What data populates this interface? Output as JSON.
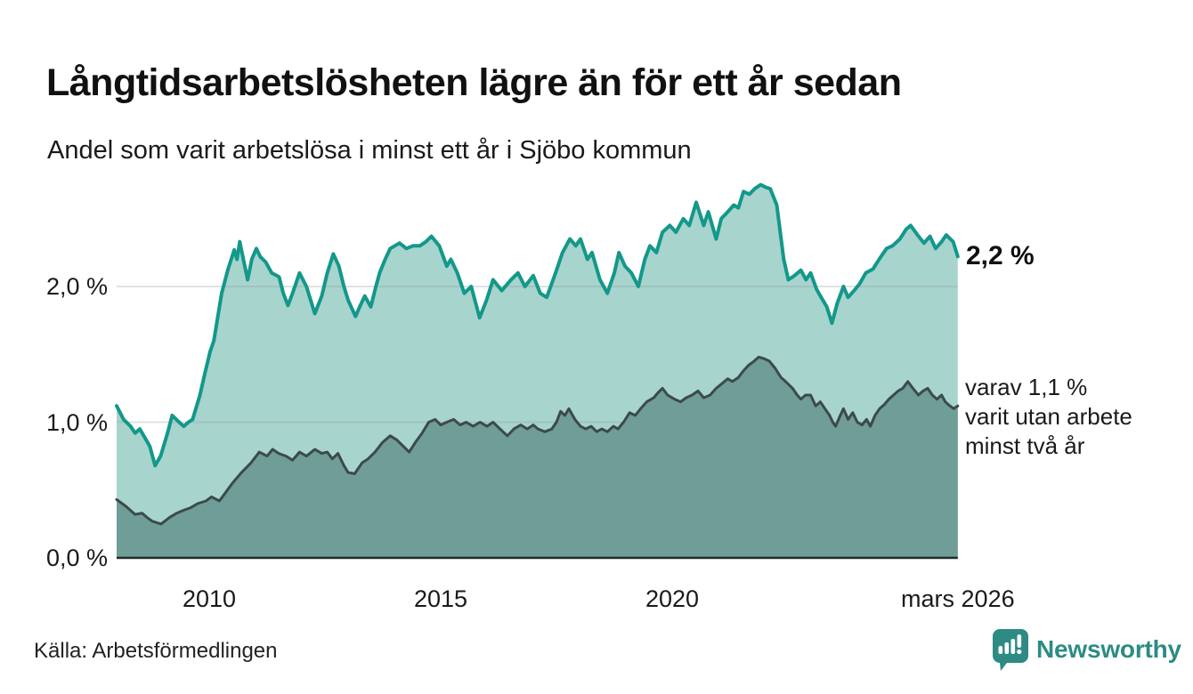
{
  "header": {
    "title": "Långtidsarbetslösheten lägre än för ett år sedan",
    "subtitle": "Andel som varit arbetslösa i minst ett år i Sjöbo kommun"
  },
  "footer": {
    "source": "Källa: Arbetsförmedlingen",
    "brand": "Newsworthy",
    "brand_color": "#2e8b84"
  },
  "chart_data": {
    "type": "area",
    "title": "Långtidsarbetslösheten lägre än för ett år sedan",
    "subtitle": "Andel som varit arbetslösa i minst ett år i Sjöbo kommun",
    "unit": "%",
    "legend": "none",
    "grid": "horizontal",
    "grid_color": "rgba(140,150,150,0.28)",
    "axis_line_color": "#1e2c2a",
    "x_axis": {
      "range_t": [
        2008.0,
        2026.17
      ],
      "ticks": [
        {
          "label": "2010",
          "t": 2010
        },
        {
          "label": "2015",
          "t": 2015
        },
        {
          "label": "2020",
          "t": 2020
        },
        {
          "label": "mars 2026",
          "t": 2026.17
        }
      ]
    },
    "y_axis": {
      "range": [
        0,
        2.8
      ],
      "gridlines": [
        1,
        2
      ],
      "ticks": [
        {
          "label": "0,0 %",
          "value": 0
        },
        {
          "label": "1,0 %",
          "value": 1
        },
        {
          "label": "2,0 %",
          "value": 2
        }
      ]
    },
    "annotations": {
      "latest_value_label": "2,2 %",
      "secondary_label": "varav 1,1 %\nvarit utan arbete\nminst två år"
    },
    "series": [
      {
        "id": "total",
        "name": "Arbetslösa minst ett år",
        "latest_value": 2.2,
        "line_color": "#13988a",
        "fill_color": "#a8d4ce",
        "line_width": 4,
        "points": [
          [
            2008.0,
            1.12
          ],
          [
            2008.15,
            1.02
          ],
          [
            2008.3,
            0.97
          ],
          [
            2008.4,
            0.92
          ],
          [
            2008.5,
            0.95
          ],
          [
            2008.62,
            0.88
          ],
          [
            2008.72,
            0.82
          ],
          [
            2008.83,
            0.68
          ],
          [
            2008.95,
            0.75
          ],
          [
            2009.1,
            0.92
          ],
          [
            2009.2,
            1.05
          ],
          [
            2009.35,
            1.0
          ],
          [
            2009.45,
            0.97
          ],
          [
            2009.55,
            1.0
          ],
          [
            2009.64,
            1.02
          ],
          [
            2009.8,
            1.2
          ],
          [
            2009.9,
            1.35
          ],
          [
            2010.02,
            1.52
          ],
          [
            2010.1,
            1.6
          ],
          [
            2010.27,
            1.95
          ],
          [
            2010.4,
            2.12
          ],
          [
            2010.54,
            2.27
          ],
          [
            2010.6,
            2.2
          ],
          [
            2010.66,
            2.33
          ],
          [
            2010.75,
            2.18
          ],
          [
            2010.83,
            2.05
          ],
          [
            2010.92,
            2.2
          ],
          [
            2011.02,
            2.28
          ],
          [
            2011.1,
            2.22
          ],
          [
            2011.22,
            2.18
          ],
          [
            2011.35,
            2.1
          ],
          [
            2011.51,
            2.07
          ],
          [
            2011.6,
            1.95
          ],
          [
            2011.7,
            1.86
          ],
          [
            2011.8,
            1.95
          ],
          [
            2011.95,
            2.1
          ],
          [
            2012.1,
            2.0
          ],
          [
            2012.28,
            1.8
          ],
          [
            2012.43,
            1.93
          ],
          [
            2012.55,
            2.1
          ],
          [
            2012.68,
            2.24
          ],
          [
            2012.8,
            2.15
          ],
          [
            2012.91,
            2.0
          ],
          [
            2013.0,
            1.9
          ],
          [
            2013.16,
            1.78
          ],
          [
            2013.25,
            1.85
          ],
          [
            2013.36,
            1.93
          ],
          [
            2013.49,
            1.85
          ],
          [
            2013.6,
            2.0
          ],
          [
            2013.68,
            2.1
          ],
          [
            2013.8,
            2.2
          ],
          [
            2013.91,
            2.28
          ],
          [
            2014.11,
            2.32
          ],
          [
            2014.26,
            2.28
          ],
          [
            2014.4,
            2.3
          ],
          [
            2014.55,
            2.3
          ],
          [
            2014.68,
            2.33
          ],
          [
            2014.8,
            2.37
          ],
          [
            2014.97,
            2.3
          ],
          [
            2015.13,
            2.15
          ],
          [
            2015.22,
            2.2
          ],
          [
            2015.36,
            2.1
          ],
          [
            2015.51,
            1.95
          ],
          [
            2015.66,
            2.0
          ],
          [
            2015.84,
            1.77
          ],
          [
            2015.99,
            1.9
          ],
          [
            2016.13,
            2.05
          ],
          [
            2016.32,
            1.97
          ],
          [
            2016.52,
            2.05
          ],
          [
            2016.67,
            2.1
          ],
          [
            2016.82,
            2.0
          ],
          [
            2017.0,
            2.08
          ],
          [
            2017.15,
            1.95
          ],
          [
            2017.29,
            1.92
          ],
          [
            2017.48,
            2.1
          ],
          [
            2017.63,
            2.25
          ],
          [
            2017.79,
            2.35
          ],
          [
            2017.92,
            2.3
          ],
          [
            2018.02,
            2.35
          ],
          [
            2018.17,
            2.2
          ],
          [
            2018.27,
            2.25
          ],
          [
            2018.44,
            2.05
          ],
          [
            2018.6,
            1.95
          ],
          [
            2018.75,
            2.1
          ],
          [
            2018.85,
            2.25
          ],
          [
            2018.98,
            2.15
          ],
          [
            2019.12,
            2.1
          ],
          [
            2019.27,
            2.0
          ],
          [
            2019.41,
            2.2
          ],
          [
            2019.52,
            2.3
          ],
          [
            2019.66,
            2.25
          ],
          [
            2019.79,
            2.4
          ],
          [
            2019.95,
            2.45
          ],
          [
            2020.08,
            2.4
          ],
          [
            2020.24,
            2.5
          ],
          [
            2020.37,
            2.45
          ],
          [
            2020.52,
            2.62
          ],
          [
            2020.68,
            2.45
          ],
          [
            2020.78,
            2.55
          ],
          [
            2020.95,
            2.35
          ],
          [
            2021.06,
            2.5
          ],
          [
            2021.2,
            2.55
          ],
          [
            2021.33,
            2.6
          ],
          [
            2021.43,
            2.58
          ],
          [
            2021.54,
            2.7
          ],
          [
            2021.67,
            2.68
          ],
          [
            2021.78,
            2.72
          ],
          [
            2021.91,
            2.75
          ],
          [
            2022.03,
            2.73
          ],
          [
            2022.12,
            2.72
          ],
          [
            2022.26,
            2.6
          ],
          [
            2022.41,
            2.2
          ],
          [
            2022.51,
            2.05
          ],
          [
            2022.64,
            2.08
          ],
          [
            2022.78,
            2.12
          ],
          [
            2022.89,
            2.05
          ],
          [
            2022.99,
            2.1
          ],
          [
            2023.12,
            1.98
          ],
          [
            2023.22,
            1.92
          ],
          [
            2023.34,
            1.85
          ],
          [
            2023.45,
            1.73
          ],
          [
            2023.57,
            1.88
          ],
          [
            2023.7,
            2.0
          ],
          [
            2023.8,
            1.92
          ],
          [
            2023.93,
            1.97
          ],
          [
            2024.05,
            2.02
          ],
          [
            2024.18,
            2.1
          ],
          [
            2024.34,
            2.13
          ],
          [
            2024.47,
            2.2
          ],
          [
            2024.63,
            2.28
          ],
          [
            2024.76,
            2.3
          ],
          [
            2024.92,
            2.35
          ],
          [
            2025.05,
            2.42
          ],
          [
            2025.15,
            2.45
          ],
          [
            2025.3,
            2.38
          ],
          [
            2025.44,
            2.32
          ],
          [
            2025.57,
            2.37
          ],
          [
            2025.69,
            2.28
          ],
          [
            2025.82,
            2.33
          ],
          [
            2025.92,
            2.38
          ],
          [
            2026.07,
            2.33
          ],
          [
            2026.17,
            2.22
          ]
        ]
      },
      {
        "id": "two_years",
        "name": "Arbetslösa minst två år",
        "latest_value": 1.1,
        "line_color": "#3c4a4a",
        "fill_color": "#6f9d97",
        "line_width": 3,
        "points": [
          [
            2008.0,
            0.43
          ],
          [
            2008.2,
            0.38
          ],
          [
            2008.4,
            0.32
          ],
          [
            2008.55,
            0.33
          ],
          [
            2008.65,
            0.3
          ],
          [
            2008.77,
            0.27
          ],
          [
            2008.96,
            0.25
          ],
          [
            2009.15,
            0.3
          ],
          [
            2009.3,
            0.33
          ],
          [
            2009.44,
            0.35
          ],
          [
            2009.6,
            0.37
          ],
          [
            2009.75,
            0.4
          ],
          [
            2009.93,
            0.42
          ],
          [
            2010.05,
            0.45
          ],
          [
            2010.22,
            0.42
          ],
          [
            2010.35,
            0.48
          ],
          [
            2010.5,
            0.55
          ],
          [
            2010.7,
            0.63
          ],
          [
            2010.9,
            0.7
          ],
          [
            2011.08,
            0.78
          ],
          [
            2011.25,
            0.75
          ],
          [
            2011.37,
            0.8
          ],
          [
            2011.5,
            0.77
          ],
          [
            2011.66,
            0.75
          ],
          [
            2011.8,
            0.72
          ],
          [
            2011.95,
            0.78
          ],
          [
            2012.1,
            0.75
          ],
          [
            2012.28,
            0.8
          ],
          [
            2012.43,
            0.77
          ],
          [
            2012.55,
            0.78
          ],
          [
            2012.66,
            0.73
          ],
          [
            2012.78,
            0.77
          ],
          [
            2012.91,
            0.68
          ],
          [
            2013.0,
            0.63
          ],
          [
            2013.14,
            0.62
          ],
          [
            2013.3,
            0.7
          ],
          [
            2013.43,
            0.73
          ],
          [
            2013.58,
            0.78
          ],
          [
            2013.74,
            0.85
          ],
          [
            2013.91,
            0.9
          ],
          [
            2014.05,
            0.87
          ],
          [
            2014.2,
            0.82
          ],
          [
            2014.32,
            0.78
          ],
          [
            2014.45,
            0.85
          ],
          [
            2014.6,
            0.92
          ],
          [
            2014.74,
            1.0
          ],
          [
            2014.88,
            1.02
          ],
          [
            2015.0,
            0.98
          ],
          [
            2015.13,
            1.0
          ],
          [
            2015.28,
            1.02
          ],
          [
            2015.42,
            0.98
          ],
          [
            2015.55,
            1.0
          ],
          [
            2015.7,
            0.97
          ],
          [
            2015.85,
            1.0
          ],
          [
            2016.0,
            0.97
          ],
          [
            2016.13,
            1.0
          ],
          [
            2016.28,
            0.95
          ],
          [
            2016.44,
            0.9
          ],
          [
            2016.58,
            0.95
          ],
          [
            2016.73,
            0.98
          ],
          [
            2016.87,
            0.95
          ],
          [
            2017.0,
            0.98
          ],
          [
            2017.1,
            0.95
          ],
          [
            2017.25,
            0.93
          ],
          [
            2017.4,
            0.95
          ],
          [
            2017.5,
            1.0
          ],
          [
            2017.59,
            1.08
          ],
          [
            2017.68,
            1.05
          ],
          [
            2017.77,
            1.1
          ],
          [
            2017.9,
            1.02
          ],
          [
            2018.02,
            0.97
          ],
          [
            2018.13,
            0.95
          ],
          [
            2018.25,
            0.97
          ],
          [
            2018.37,
            0.93
          ],
          [
            2018.48,
            0.95
          ],
          [
            2018.6,
            0.93
          ],
          [
            2018.73,
            0.97
          ],
          [
            2018.83,
            0.95
          ],
          [
            2018.95,
            1.0
          ],
          [
            2019.08,
            1.07
          ],
          [
            2019.2,
            1.05
          ],
          [
            2019.32,
            1.1
          ],
          [
            2019.45,
            1.15
          ],
          [
            2019.6,
            1.18
          ],
          [
            2019.7,
            1.22
          ],
          [
            2019.79,
            1.25
          ],
          [
            2019.9,
            1.2
          ],
          [
            2020.05,
            1.17
          ],
          [
            2020.18,
            1.15
          ],
          [
            2020.3,
            1.18
          ],
          [
            2020.43,
            1.2
          ],
          [
            2020.56,
            1.23
          ],
          [
            2020.68,
            1.18
          ],
          [
            2020.82,
            1.2
          ],
          [
            2020.95,
            1.25
          ],
          [
            2021.06,
            1.28
          ],
          [
            2021.2,
            1.32
          ],
          [
            2021.3,
            1.3
          ],
          [
            2021.43,
            1.33
          ],
          [
            2021.54,
            1.38
          ],
          [
            2021.65,
            1.42
          ],
          [
            2021.77,
            1.45
          ],
          [
            2021.87,
            1.48
          ],
          [
            2021.97,
            1.47
          ],
          [
            2022.1,
            1.45
          ],
          [
            2022.22,
            1.4
          ],
          [
            2022.35,
            1.33
          ],
          [
            2022.45,
            1.3
          ],
          [
            2022.6,
            1.25
          ],
          [
            2022.7,
            1.2
          ],
          [
            2022.78,
            1.17
          ],
          [
            2022.88,
            1.2
          ],
          [
            2022.99,
            1.2
          ],
          [
            2023.1,
            1.12
          ],
          [
            2023.2,
            1.15
          ],
          [
            2023.3,
            1.1
          ],
          [
            2023.4,
            1.05
          ],
          [
            2023.47,
            1.0
          ],
          [
            2023.53,
            0.97
          ],
          [
            2023.63,
            1.05
          ],
          [
            2023.7,
            1.1
          ],
          [
            2023.8,
            1.02
          ],
          [
            2023.9,
            1.07
          ],
          [
            2024.0,
            1.0
          ],
          [
            2024.1,
            0.98
          ],
          [
            2024.2,
            1.02
          ],
          [
            2024.28,
            0.97
          ],
          [
            2024.38,
            1.05
          ],
          [
            2024.48,
            1.1
          ],
          [
            2024.58,
            1.13
          ],
          [
            2024.68,
            1.17
          ],
          [
            2024.78,
            1.2
          ],
          [
            2024.88,
            1.23
          ],
          [
            2024.98,
            1.25
          ],
          [
            2025.09,
            1.3
          ],
          [
            2025.2,
            1.25
          ],
          [
            2025.32,
            1.2
          ],
          [
            2025.42,
            1.23
          ],
          [
            2025.52,
            1.25
          ],
          [
            2025.62,
            1.2
          ],
          [
            2025.72,
            1.17
          ],
          [
            2025.82,
            1.2
          ],
          [
            2025.9,
            1.15
          ],
          [
            2026.0,
            1.12
          ],
          [
            2026.08,
            1.1
          ],
          [
            2026.17,
            1.12
          ]
        ]
      }
    ]
  }
}
